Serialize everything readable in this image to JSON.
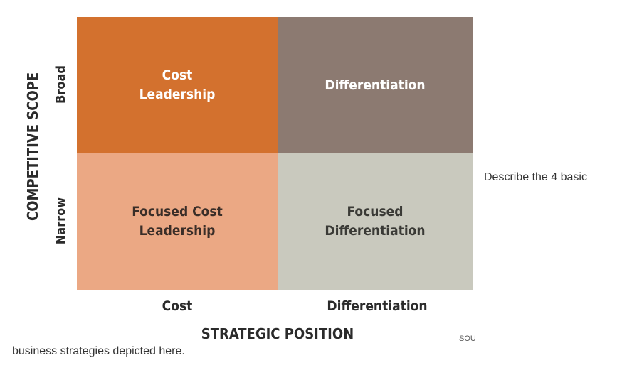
{
  "matrix": {
    "cells": [
      {
        "label": "Cost\nLeadership",
        "bg": "#D3712E",
        "fg": "#FFFFFF"
      },
      {
        "label": "Differentiation",
        "bg": "#8C7A71",
        "fg": "#FFFFFF"
      },
      {
        "label": "Focused Cost\nLeadership",
        "bg": "#EBA884",
        "fg": "#3A2E28"
      },
      {
        "label": "Focused\nDifferentiation",
        "bg": "#C9C9BE",
        "fg": "#3A3A36"
      }
    ],
    "x_labels": [
      "Cost",
      "Differentiation"
    ],
    "x_title": "STRATEGIC POSITION",
    "y_labels": [
      "Broad",
      "Narrow"
    ],
    "y_title": "COMPETITIVE SCOPE"
  },
  "question": {
    "line1": "Describe the 4 basic",
    "line2": "business strategies depicted here."
  },
  "source_fragment": "SOU"
}
